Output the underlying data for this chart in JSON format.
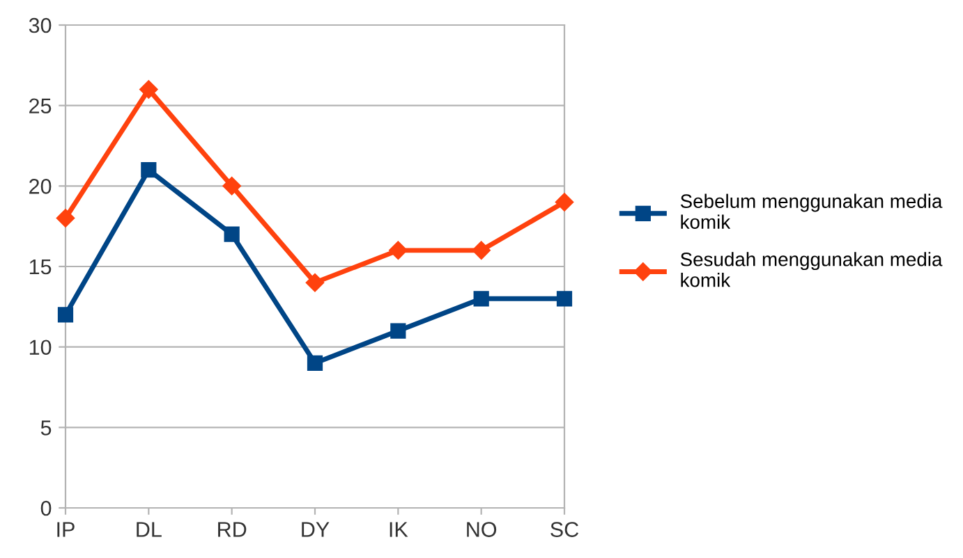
{
  "chart_data": {
    "type": "line",
    "categories": [
      "IP",
      "DL",
      "RD",
      "DY",
      "IK",
      "NO",
      "SC"
    ],
    "series": [
      {
        "name": "Sebelum menggunakan media komik",
        "color": "#004586",
        "marker": "square",
        "values": [
          12,
          21,
          17,
          9,
          11,
          13,
          13
        ]
      },
      {
        "name": "Sesudah menggunakan media komik",
        "color": "#ff420e",
        "marker": "diamond",
        "values": [
          18,
          26,
          20,
          14,
          16,
          16,
          19
        ]
      }
    ],
    "ylim": [
      0,
      30
    ],
    "yticks": [
      0,
      5,
      10,
      15,
      20,
      25,
      30
    ],
    "grid": "y",
    "legend": "right",
    "line_style": "solid"
  }
}
